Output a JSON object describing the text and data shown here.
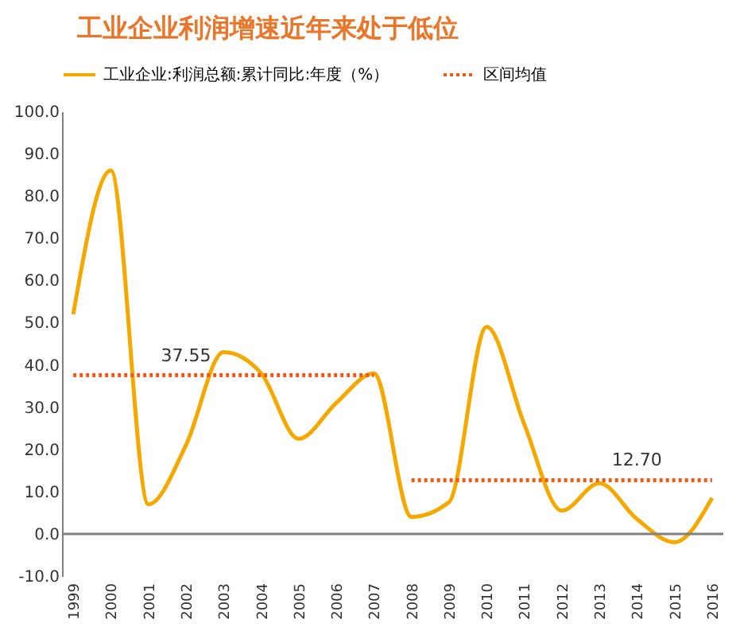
{
  "chart_data": {
    "type": "line",
    "title": "工业企业利润增速近年来处于低位",
    "categories": [
      "1999",
      "2000",
      "2001",
      "2002",
      "2003",
      "2004",
      "2005",
      "2006",
      "2007",
      "2008",
      "2009",
      "2010",
      "2011",
      "2012",
      "2013",
      "2014",
      "2015",
      "2016"
    ],
    "series": [
      {
        "name": "工业企业:利润总额:累计同比:年度（%）",
        "color": "#f5a800",
        "line_style": "solid",
        "values": [
          52,
          86,
          7,
          21,
          43,
          38,
          22.5,
          31,
          38,
          4,
          7.5,
          49,
          26,
          5.5,
          12,
          3.5,
          -2,
          8.5
        ]
      },
      {
        "name": "区间均值",
        "color": "#f05a14",
        "line_style": "dotted",
        "values": [
          37.55,
          37.55,
          37.55,
          37.55,
          37.55,
          37.55,
          37.55,
          37.55,
          37.55,
          null,
          null,
          null,
          null,
          null,
          null,
          null,
          null,
          null
        ]
      },
      {
        "color": "#f05a14",
        "line_style": "dotted",
        "values": [
          null,
          null,
          null,
          null,
          null,
          null,
          null,
          null,
          null,
          12.7,
          12.7,
          12.7,
          12.7,
          12.7,
          12.7,
          12.7,
          12.7,
          12.7
        ]
      }
    ],
    "ylim": [
      -10,
      100
    ],
    "yticks": [
      {
        "value": -10,
        "label": "-10.0"
      },
      {
        "value": 0,
        "label": "0.0"
      },
      {
        "value": 10,
        "label": "10.0"
      },
      {
        "value": 20,
        "label": "20.0"
      },
      {
        "value": 30,
        "label": "30.0"
      },
      {
        "value": 40,
        "label": "40.0"
      },
      {
        "value": 50,
        "label": "50.0"
      },
      {
        "value": 60,
        "label": "60.0"
      },
      {
        "value": 70,
        "label": "70.0"
      },
      {
        "value": 80,
        "label": "80.0"
      },
      {
        "value": 90,
        "label": "90.0"
      },
      {
        "value": 100,
        "label": "100.0"
      }
    ],
    "ref_lines": [
      {
        "axis": "y",
        "value": 0,
        "color": "#808080"
      }
    ],
    "annotations": [
      {
        "text": "37.55",
        "x": "2002",
        "y": 37.55
      },
      {
        "text": "12.70",
        "x": "2014",
        "y": 12.7
      }
    ],
    "grid": false,
    "legend": "top"
  }
}
